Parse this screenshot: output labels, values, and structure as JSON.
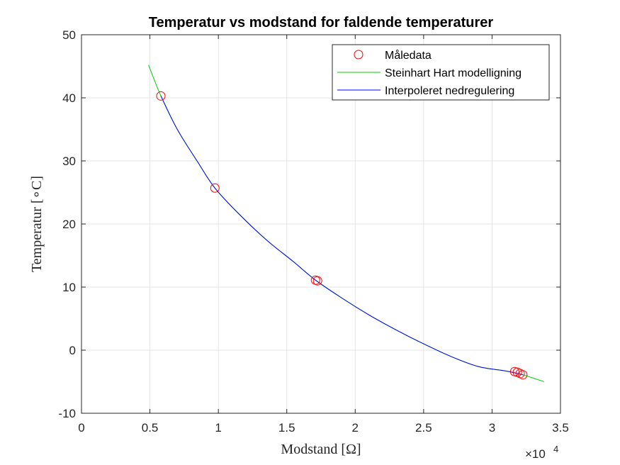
{
  "chart_data": {
    "type": "line",
    "title": "Temperatur vs modstand for faldende temperaturer",
    "xlabel": "Modstand [Ω]",
    "ylabel": "Temperatur [∘C]",
    "xlim": [
      0,
      35000
    ],
    "ylim": [
      -10,
      50
    ],
    "x_ticks": [
      0,
      5000,
      10000,
      15000,
      20000,
      25000,
      30000,
      35000
    ],
    "x_tick_labels": [
      "0",
      "0.5",
      "1",
      "1.5",
      "2",
      "2.5",
      "3",
      "3.5"
    ],
    "x_exponent_prefix": "×10",
    "x_exponent_power": "4",
    "y_ticks": [
      -10,
      0,
      10,
      20,
      30,
      40,
      50
    ],
    "y_tick_labels": [
      "-10",
      "0",
      "10",
      "20",
      "30",
      "40",
      "50"
    ],
    "grid": true,
    "legend_position": "top-right",
    "colors": {
      "measured": "#ff0000",
      "model": "#00cc00",
      "interp": "#0000ff",
      "grid": "#e5e5e5",
      "axes": "#262626"
    },
    "series": [
      {
        "name": "Måledata",
        "style": "markers",
        "points": [
          {
            "x": 5800,
            "y": 40.3
          },
          {
            "x": 9750,
            "y": 25.7
          },
          {
            "x": 17100,
            "y": 11.1
          },
          {
            "x": 17250,
            "y": 11.0
          },
          {
            "x": 31650,
            "y": -3.4
          },
          {
            "x": 31850,
            "y": -3.5
          },
          {
            "x": 32050,
            "y": -3.7
          },
          {
            "x": 32250,
            "y": -3.9
          }
        ]
      },
      {
        "name": "Steinhart Hart modelligning",
        "style": "line",
        "x": [
          4900,
          5800,
          7000,
          8500,
          9750,
          11500,
          13500,
          15500,
          17100,
          19000,
          21000,
          23000,
          25000,
          27000,
          29000,
          31000,
          32250,
          33800
        ],
        "y": [
          45.2,
          40.3,
          35.0,
          29.8,
          25.7,
          21.6,
          17.5,
          14.0,
          11.1,
          8.3,
          5.6,
          3.2,
          1.0,
          -1.0,
          -2.6,
          -3.3,
          -3.9,
          -5.0
        ]
      },
      {
        "name": "Interpoleret nedregulering",
        "style": "line",
        "x": [
          5800,
          7000,
          8500,
          9750,
          11500,
          13500,
          15500,
          17100,
          19000,
          21000,
          23000,
          25000,
          27000,
          29000,
          31000,
          32250
        ],
        "y": [
          40.3,
          35.0,
          29.8,
          25.7,
          21.6,
          17.5,
          14.0,
          11.1,
          8.3,
          5.6,
          3.2,
          1.0,
          -1.0,
          -2.6,
          -3.3,
          -3.9
        ]
      }
    ]
  }
}
